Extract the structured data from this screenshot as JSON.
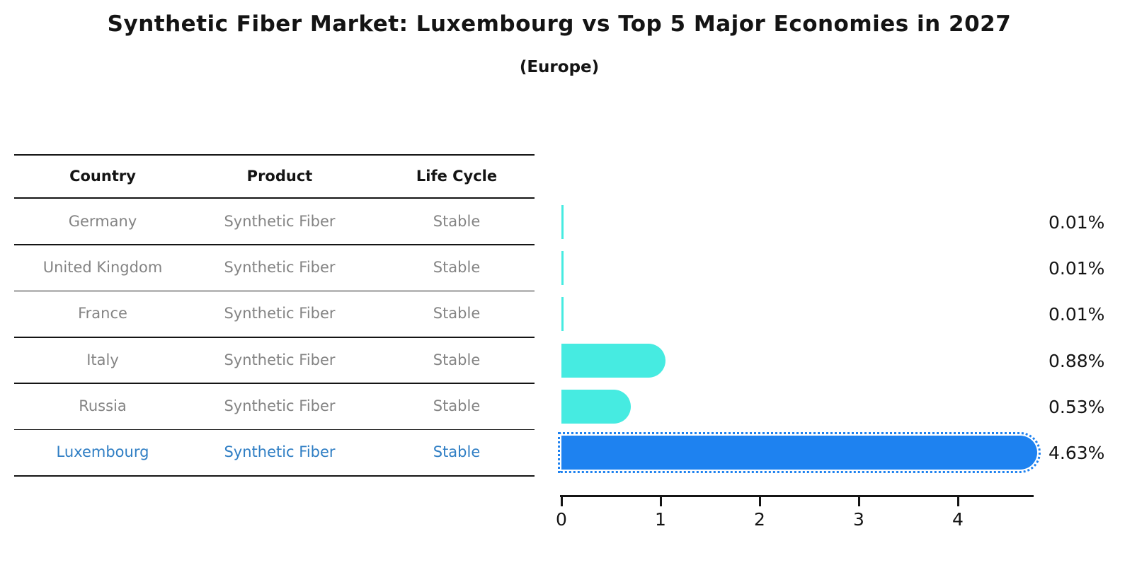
{
  "title": "Synthetic Fiber Market: Luxembourg vs Top 5 Major Economies in 2027",
  "subtitle": "(Europe)",
  "table": {
    "headers": [
      "Country",
      "Product",
      "Life Cycle"
    ],
    "rows": [
      {
        "country": "Germany",
        "product": "Synthetic Fiber",
        "life_cycle": "Stable",
        "highlight": false
      },
      {
        "country": "United Kingdom",
        "product": "Synthetic Fiber",
        "life_cycle": "Stable",
        "highlight": false
      },
      {
        "country": "France",
        "product": "Synthetic Fiber",
        "life_cycle": "Stable",
        "highlight": false
      },
      {
        "country": "Italy",
        "product": "Synthetic Fiber",
        "life_cycle": "Stable",
        "highlight": false
      },
      {
        "country": "Russia",
        "product": "Synthetic Fiber",
        "life_cycle": "Stable",
        "highlight": false
      },
      {
        "country": "Luxembourg",
        "product": "Synthetic Fiber",
        "life_cycle": "Stable",
        "highlight": true
      }
    ]
  },
  "chart_data": {
    "type": "bar",
    "orientation": "horizontal",
    "title": "Synthetic Fiber Market: Luxembourg vs Top 5 Major Economies in 2027",
    "subtitle": "(Europe)",
    "categories": [
      "Germany",
      "United Kingdom",
      "France",
      "Italy",
      "Russia",
      "Luxembourg"
    ],
    "values": [
      0.01,
      0.01,
      0.01,
      0.88,
      0.53,
      4.63
    ],
    "value_labels": [
      "0.01%",
      "0.01%",
      "0.01%",
      "0.88%",
      "0.53%",
      "4.63%"
    ],
    "highlight_index": 5,
    "xlabel": "",
    "ylabel": "",
    "xticks": [
      "0",
      "1",
      "2",
      "3",
      "4"
    ],
    "xtick_values": [
      0,
      1,
      2,
      3,
      4
    ],
    "xlim": [
      0,
      4.77
    ],
    "grid": false,
    "legend": false,
    "bar_color": "#46ebe1",
    "highlight_color": "#1e82f0",
    "highlight_text_color": "#2f7ec4",
    "text_color": "#848484"
  }
}
